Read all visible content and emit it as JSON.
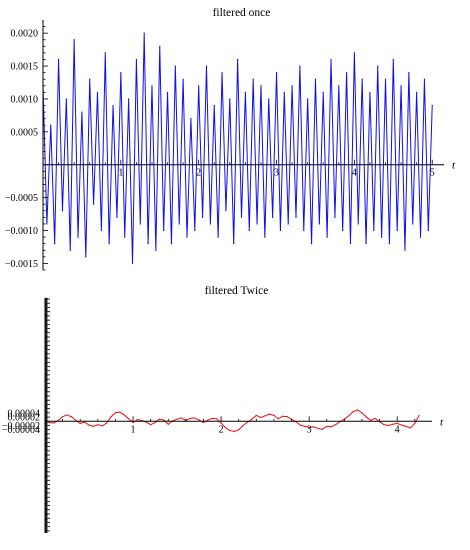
{
  "chart_data": [
    {
      "type": "line",
      "title": "filtered once",
      "xlabel": "t",
      "ylabel": "",
      "xlim": [
        0,
        5.1
      ],
      "ylim": [
        -0.0016,
        0.0022
      ],
      "x_ticks": [
        {
          "value": 1,
          "label": "1"
        },
        {
          "value": 2,
          "label": "2"
        },
        {
          "value": 3,
          "label": "3"
        },
        {
          "value": 4,
          "label": "4"
        },
        {
          "value": 5,
          "label": "5"
        }
      ],
      "y_ticks": [
        {
          "value": 0.002,
          "label": "0.0020"
        },
        {
          "value": 0.0015,
          "label": "0.0015"
        },
        {
          "value": 0.001,
          "label": "0.0010"
        },
        {
          "value": 0.0005,
          "label": "0.0005"
        },
        {
          "value": -0.0005,
          "label": "−0.0005"
        },
        {
          "value": -0.001,
          "label": "−0.0010"
        },
        {
          "value": -0.0015,
          "label": "−0.0015"
        }
      ],
      "grid": false,
      "series": [
        {
          "color": "#1010e8",
          "x": [
            0,
            0.05,
            0.1,
            0.15,
            0.2,
            0.25,
            0.3,
            0.35,
            0.4,
            0.45,
            0.5,
            0.55,
            0.6,
            0.65,
            0.7,
            0.75,
            0.8,
            0.85,
            0.9,
            0.95,
            1,
            1.05,
            1.1,
            1.15,
            1.2,
            1.25,
            1.3,
            1.35,
            1.4,
            1.45,
            1.5,
            1.55,
            1.6,
            1.65,
            1.7,
            1.75,
            1.8,
            1.85,
            1.9,
            1.95,
            2,
            2.05,
            2.1,
            2.15,
            2.2,
            2.25,
            2.3,
            2.35,
            2.4,
            2.45,
            2.5,
            2.55,
            2.6,
            2.65,
            2.7,
            2.75,
            2.8,
            2.85,
            2.9,
            2.95,
            3,
            3.05,
            3.1,
            3.15,
            3.2,
            3.25,
            3.3,
            3.35,
            3.4,
            3.45,
            3.5,
            3.55,
            3.6,
            3.65,
            3.7,
            3.75,
            3.8,
            3.85,
            3.9,
            3.95,
            4,
            4.05,
            4.1,
            4.15,
            4.2,
            4.25,
            4.3,
            4.35,
            4.4,
            4.45,
            4.5,
            4.55,
            4.6,
            4.65,
            4.7,
            4.75,
            4.8,
            4.85,
            4.9,
            4.95,
            5
          ],
          "values": [
            0.0012,
            -0.0009,
            0.0006,
            -0.0012,
            0.0016,
            -0.0007,
            0.001,
            -0.0013,
            0.0019,
            -0.0011,
            0.0008,
            -0.0014,
            0.0013,
            -0.0006,
            0.0011,
            -0.001,
            0.0017,
            -0.0012,
            0.0009,
            -0.0008,
            0.0014,
            -0.0011,
            0.001,
            -0.0015,
            0.0016,
            -0.0009,
            0.002,
            -0.0012,
            0.0012,
            -0.0013,
            0.0018,
            -0.001,
            0.0011,
            -0.0012,
            0.0015,
            -0.0009,
            0.0013,
            -0.0011,
            0.0007,
            -0.001,
            0.0012,
            -0.0008,
            0.0015,
            -0.0009,
            0.0009,
            -0.0011,
            0.0014,
            -0.0007,
            0.001,
            -0.0012,
            0.0016,
            -0.0008,
            0.0011,
            -0.001,
            0.0013,
            -0.0009,
            0.0012,
            -0.0011,
            0.001,
            -0.0008,
            0.0014,
            -0.001,
            0.0011,
            -0.0009,
            0.0012,
            -0.0008,
            0.0015,
            -0.001,
            0.001,
            -0.0012,
            0.0013,
            -0.0009,
            0.0011,
            -0.0011,
            0.0016,
            -0.0008,
            0.0012,
            -0.001,
            0.0014,
            -0.0012,
            0.0017,
            -0.0009,
            0.0013,
            -0.0012,
            0.0011,
            -0.001,
            0.0015,
            -0.0011,
            0.0013,
            -0.0012,
            0.0016,
            -0.001,
            0.0012,
            -0.0013,
            0.0014,
            -0.0009,
            0.0011,
            -0.0011,
            0.0013,
            -0.001,
            0.0009
          ]
        }
      ]
    },
    {
      "type": "line",
      "title": "filtered Twice",
      "xlabel": "t",
      "ylabel": "",
      "xlim": [
        0,
        4.35
      ],
      "ylim": [
        -0.00053,
        0.000585
      ],
      "x_ticks": [
        {
          "value": 1,
          "label": "1"
        },
        {
          "value": 2,
          "label": "2"
        },
        {
          "value": 3,
          "label": "3"
        },
        {
          "value": 4,
          "label": "4"
        }
      ],
      "y_ticks": [
        {
          "value": 4e-05,
          "label": "0.00004"
        },
        {
          "value": 2e-05,
          "label": "0.00002"
        },
        {
          "value": -2e-05,
          "label": "−0.00002"
        },
        {
          "value": -4e-05,
          "label": "−0.00004"
        }
      ],
      "grid": false,
      "series": [
        {
          "color": "#ee1111",
          "x": [
            0,
            0.05,
            0.1,
            0.15,
            0.2,
            0.25,
            0.3,
            0.35,
            0.4,
            0.45,
            0.5,
            0.55,
            0.6,
            0.65,
            0.7,
            0.75,
            0.8,
            0.85,
            0.9,
            0.95,
            1,
            1.05,
            1.1,
            1.15,
            1.2,
            1.25,
            1.3,
            1.35,
            1.4,
            1.45,
            1.5,
            1.55,
            1.6,
            1.65,
            1.7,
            1.75,
            1.8,
            1.85,
            1.9,
            1.95,
            2,
            2.05,
            2.1,
            2.15,
            2.2,
            2.25,
            2.3,
            2.35,
            2.4,
            2.45,
            2.5,
            2.55,
            2.6,
            2.65,
            2.7,
            2.75,
            2.8,
            2.85,
            2.9,
            2.95,
            3,
            3.05,
            3.1,
            3.15,
            3.2,
            3.25,
            3.3,
            3.35,
            3.4,
            3.45,
            3.5,
            3.55,
            3.6,
            3.65,
            3.7,
            3.75,
            3.8,
            3.85,
            3.9,
            3.95,
            4,
            4.05,
            4.1,
            4.15,
            4.2,
            4.25
          ],
          "values": [
            2e-06,
            -6e-06,
            -8e-06,
            4e-06,
            2.2e-05,
            3e-05,
            2.2e-05,
            4e-06,
            -1e-05,
            -4e-06,
            -1.8e-05,
            -2.4e-05,
            -1.6e-05,
            -2.2e-05,
            -8e-06,
            2.2e-05,
            4e-05,
            4.4e-05,
            3e-05,
            1.2e-05,
            -6e-06,
            8e-06,
            4e-06,
            -4e-06,
            -1.6e-05,
            -6e-06,
            1e-05,
            6e-06,
            -1.4e-05,
            2e-06,
            1e-05,
            1.6e-05,
            4e-06,
            1.4e-05,
            1.6e-05,
            6e-06,
            -6e-06,
            6e-06,
            1.4e-05,
            1.2e-05,
            -8e-06,
            -3e-05,
            -4.4e-05,
            -4.8e-05,
            -4e-05,
            -2e-05,
            -4e-06,
            1e-05,
            2.8e-05,
            1.8e-05,
            2.6e-05,
            3.4e-05,
            2.8e-05,
            1.2e-05,
            2.4e-05,
            2.2e-05,
            1e-05,
            -2e-06,
            -1.8e-05,
            -2.4e-05,
            -3e-05,
            -2.6e-05,
            -3.4e-05,
            -3.8e-05,
            -2.4e-05,
            -2.6e-05,
            -1.6e-05,
            -2e-06,
            1e-05,
            2.6e-05,
            4.6e-05,
            5.4e-05,
            4e-05,
            2e-05,
            4e-06,
            1.4e-05,
            -2e-06,
            -1.6e-05,
            -2e-05,
            -1.4e-05,
            -1e-05,
            -1.8e-05,
            -2.4e-05,
            -3.2e-05,
            -1e-05,
            2.8e-05
          ]
        }
      ]
    }
  ]
}
